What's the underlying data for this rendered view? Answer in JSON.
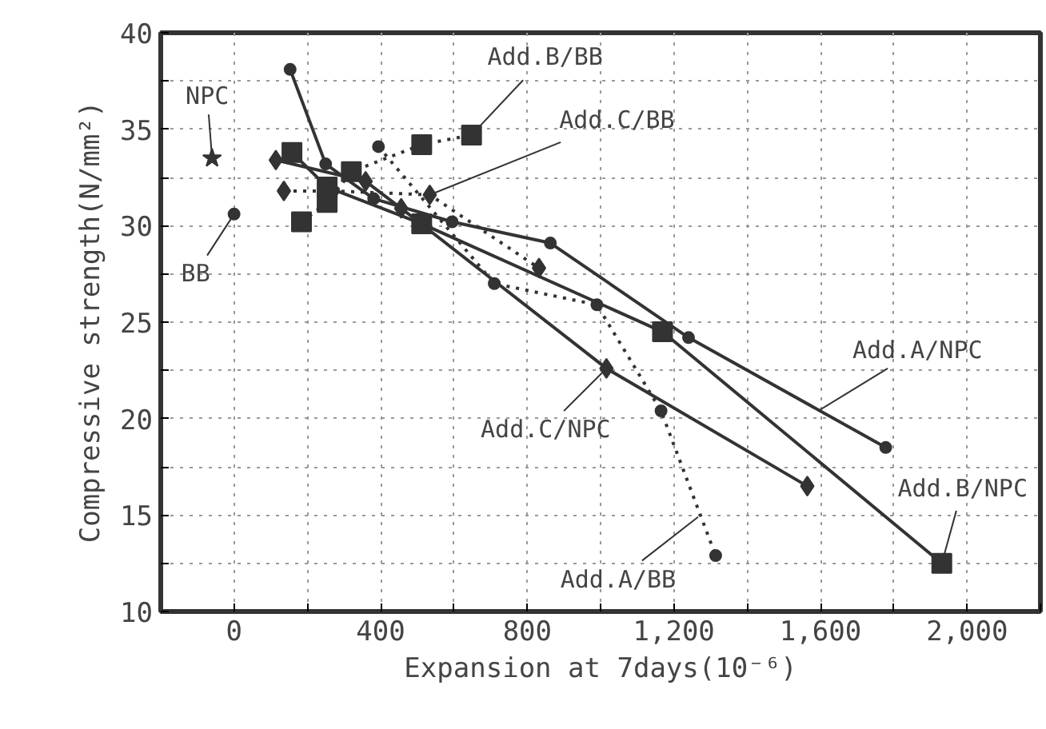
{
  "chart_data": {
    "type": "line",
    "xlabel": "Expansion at 7days(10⁻⁶)",
    "ylabel": "Compressive strength(N/mm²)",
    "xlim": [
      -200,
      2200
    ],
    "ylim": [
      10,
      40
    ],
    "xticks": [
      {
        "value": -200,
        "label": null
      },
      0,
      {
        "value": 200,
        "label": null
      },
      400,
      {
        "value": 600,
        "label": null
      },
      800,
      {
        "value": 1000,
        "label": null
      },
      {
        "value": 1200,
        "label": "1,200"
      },
      {
        "value": 1400,
        "label": null
      },
      {
        "value": 1600,
        "label": "1,600"
      },
      {
        "value": 1800,
        "label": null
      },
      {
        "value": 2000,
        "label": "2,000"
      },
      {
        "value": 2200,
        "label": null
      }
    ],
    "yticks": [
      10,
      {
        "value": 12.5,
        "label": null
      },
      15,
      {
        "value": 17.5,
        "label": null
      },
      20,
      {
        "value": 22.5,
        "label": null
      },
      25,
      {
        "value": 27.5,
        "label": null
      },
      30,
      {
        "value": 32.5,
        "label": null
      },
      35,
      {
        "value": 37.5,
        "label": null
      },
      40
    ],
    "grid": true,
    "series": [
      {
        "marker": "circle",
        "line_style": "solid",
        "color": "#333333",
        "x": [
          153,
          250,
          381,
          595,
          863,
          1240,
          1778
        ],
        "values": [
          38.1,
          33.2,
          31.4,
          30.2,
          29.1,
          24.2,
          18.5
        ]
      },
      {
        "marker": "circle",
        "line_style": "dotted",
        "color": "#333333",
        "x": [
          394,
          710,
          990,
          1165,
          1314
        ],
        "values": [
          34.1,
          27.0,
          25.9,
          20.4,
          12.9
        ]
      },
      {
        "marker": "square",
        "line_style": "solid",
        "color": "#333333",
        "x": [
          158,
          254,
          512,
          1169,
          1931
        ],
        "values": [
          33.8,
          32.0,
          30.1,
          24.5,
          12.5
        ]
      },
      {
        "marker": "square",
        "line_style": "dotted",
        "color": "#333333",
        "x": [
          184,
          254,
          320,
          512,
          648
        ],
        "values": [
          30.2,
          31.2,
          32.8,
          34.2,
          34.7
        ]
      },
      {
        "marker": "diamond",
        "line_style": "solid",
        "color": "#333333",
        "x": [
          114,
          359,
          456,
          1016,
          1564
        ],
        "values": [
          33.4,
          32.3,
          30.9,
          22.6,
          16.5
        ]
      },
      {
        "marker": "diamond",
        "line_style": "dotted",
        "color": "#333333",
        "x": [
          136,
          270,
          534,
          832
        ],
        "values": [
          31.8,
          31.8,
          31.6,
          27.8
        ]
      },
      {
        "type": "scatter",
        "marker": "star",
        "color": "#333333",
        "x": [
          -60
        ],
        "values": [
          33.5
        ]
      },
      {
        "type": "scatter",
        "marker": "circle",
        "color": "#333333",
        "x": [
          0
        ],
        "values": [
          30.6
        ]
      }
    ],
    "annotations": [
      {
        "text": "NPC",
        "x": -60,
        "y": 33.5
      },
      {
        "text": "BB",
        "x": 0,
        "y": 30.6
      },
      {
        "text": "Add.B/BB",
        "x": 648,
        "y": 34.7
      },
      {
        "text": "Add.C/BB",
        "x": 534,
        "y": 31.6
      },
      {
        "text": "Add.C/NPC",
        "x": 1016,
        "y": 22.6
      },
      {
        "text": "Add.A/NPC",
        "x": 1594,
        "y": 20.4
      },
      {
        "text": "Add.B/NPC",
        "x": 1931,
        "y": 12.5
      },
      {
        "text": "Add.A/BB",
        "x": 1266,
        "y": 14.9
      }
    ]
  }
}
